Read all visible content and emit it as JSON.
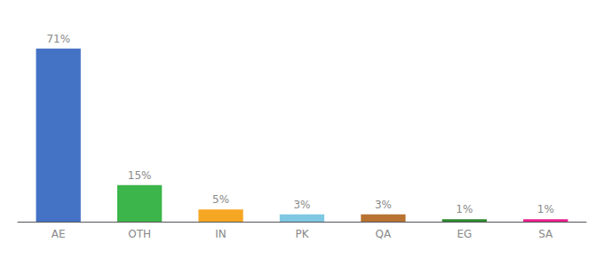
{
  "chart_data": {
    "type": "bar",
    "categories": [
      "AE",
      "OTH",
      "IN",
      "PK",
      "QA",
      "EG",
      "SA"
    ],
    "values": [
      71,
      15,
      5,
      3,
      3,
      1,
      1
    ],
    "value_labels": [
      "71%",
      "15%",
      "5%",
      "3%",
      "3%",
      "1%",
      "1%"
    ],
    "colors": [
      "#4472c4",
      "#3cb54a",
      "#f5a623",
      "#7ec8e3",
      "#b87333",
      "#2d8a2d",
      "#e91e8c"
    ],
    "ylim": [
      0,
      80
    ],
    "grid": false,
    "data_labels": true,
    "tick_labels": "x"
  }
}
